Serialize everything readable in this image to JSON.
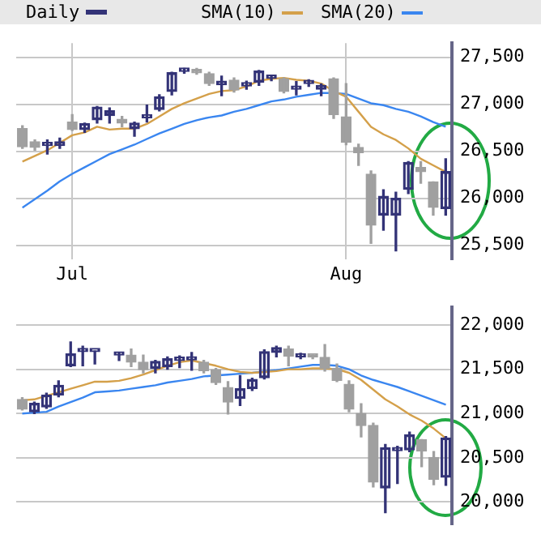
{
  "chart_data": [
    {
      "type": "candlestick",
      "legend": "top",
      "grid": true,
      "marker": "none",
      "categories": [
        null,
        null,
        null,
        null,
        "Jul",
        null,
        null,
        null,
        null,
        null,
        null,
        null,
        null,
        null,
        null,
        null,
        null,
        null,
        null,
        null,
        null,
        null,
        null,
        null,
        null,
        null,
        "Aug",
        null,
        null,
        null,
        null,
        null,
        null,
        null,
        null
      ],
      "ylim": [
        25350,
        27650
      ],
      "yticks": [
        {
          "value": 25500,
          "label": "25,500"
        },
        {
          "value": 26000,
          "label": "26,000"
        },
        {
          "value": 26500,
          "label": "26,500"
        },
        {
          "value": 27000,
          "label": "27,000"
        },
        {
          "value": 27500,
          "label": "27,500"
        }
      ],
      "series": [
        {
          "name": "Daily",
          "color": "#333377",
          "colors": [
            "#a0a0a0",
            "#a0a0a0",
            "#333377",
            "#333377",
            "#a0a0a0",
            "#333377",
            "#333377",
            "#333377",
            "#a0a0a0",
            "#333377",
            "#333377",
            "#333377",
            "#333377",
            "#333377",
            "#a0a0a0",
            "#a0a0a0",
            "#333377",
            "#a0a0a0",
            "#333377",
            "#333377",
            "#333377",
            "#a0a0a0",
            "#333377",
            "#333377",
            "#333377",
            "#a0a0a0",
            "#a0a0a0",
            "#a0a0a0",
            "#a0a0a0",
            "#333377",
            "#333377",
            "#333377",
            "#a0a0a0",
            "#a0a0a0",
            "#333377"
          ],
          "ohlc": [
            [
              26740,
              26770,
              26530,
              26548
            ],
            [
              26600,
              26620,
              26510,
              26540
            ],
            [
              26560,
              26620,
              26470,
              26565
            ],
            [
              26560,
              26640,
              26530,
              26600
            ],
            [
              26810,
              26890,
              26720,
              26730
            ],
            [
              26730,
              26800,
              26700,
              26795
            ],
            [
              26835,
              26975,
              26800,
              26970
            ],
            [
              26880,
              26960,
              26800,
              26930
            ],
            [
              26840,
              26870,
              26760,
              26800
            ],
            [
              26740,
              26810,
              26660,
              26800
            ],
            [
              26855,
              26990,
              26810,
              26860
            ],
            [
              26945,
              27100,
              26930,
              27080
            ],
            [
              27135,
              27340,
              27100,
              27335
            ],
            [
              27350,
              27380,
              27330,
              27365
            ],
            [
              27365,
              27380,
              27320,
              27335
            ],
            [
              27325,
              27340,
              27200,
              27220
            ],
            [
              27207,
              27300,
              27090,
              27245
            ],
            [
              27255,
              27280,
              27130,
              27150
            ],
            [
              27195,
              27245,
              27160,
              27200
            ],
            [
              27235,
              27360,
              27200,
              27353
            ],
            [
              27275,
              27300,
              27250,
              27280
            ],
            [
              27270,
              27280,
              27120,
              27135
            ],
            [
              27160,
              27240,
              27100,
              27190
            ],
            [
              27220,
              27260,
              27190,
              27225
            ],
            [
              27160,
              27215,
              27090,
              27200
            ],
            [
              27270,
              27280,
              26850,
              26890
            ],
            [
              26865,
              27220,
              26570,
              26595
            ],
            [
              26540,
              26575,
              26350,
              26485
            ],
            [
              26255,
              26290,
              25520,
              25713
            ],
            [
              25820,
              26090,
              25660,
              26020
            ],
            [
              25820,
              26065,
              25440,
              26000
            ],
            [
              26095,
              26390,
              26050,
              26380
            ],
            [
              26326,
              26390,
              26160,
              26283
            ],
            [
              26175,
              26175,
              25820,
              25903
            ],
            [
              25890,
              26420,
              25820,
              26283
            ]
          ]
        },
        {
          "name": "SMA(10)",
          "type": "line",
          "color": "#d4a04a",
          "values": [
            26390,
            26450,
            26510,
            26590,
            26670,
            26700,
            26760,
            26730,
            26740,
            26740,
            26790,
            26870,
            26950,
            27010,
            27060,
            27110,
            27140,
            27150,
            27190,
            27250,
            27270,
            27280,
            27260,
            27250,
            27220,
            27140,
            27080,
            26920,
            26760,
            26680,
            26620,
            26530,
            26420,
            26350,
            26280
          ]
        },
        {
          "name": "SMA(20)",
          "type": "line",
          "color": "#3a86f0",
          "values": [
            25900,
            25990,
            26080,
            26180,
            26260,
            26330,
            26400,
            26470,
            26520,
            26570,
            26630,
            26690,
            26740,
            26790,
            26830,
            26860,
            26880,
            26920,
            26950,
            26990,
            27030,
            27050,
            27080,
            27100,
            27120,
            27120,
            27110,
            27060,
            27010,
            26990,
            26950,
            26920,
            26870,
            26810,
            26760
          ]
        }
      ]
    },
    {
      "type": "candlestick",
      "grid": "y",
      "marker": "none",
      "tick_labels": "y",
      "categories": [
        null,
        null,
        null,
        null,
        null,
        null,
        null,
        null,
        null,
        null,
        null,
        null,
        null,
        null,
        null,
        null,
        null,
        null,
        null,
        null,
        null,
        null,
        null,
        null,
        null,
        null,
        null,
        null,
        null,
        null,
        null,
        null,
        null,
        null,
        null,
        null
      ],
      "ylim": [
        19750,
        22200
      ],
      "yticks": [
        {
          "value": 20000,
          "label": "20,000"
        },
        {
          "value": 20500,
          "label": "20,500"
        },
        {
          "value": 21000,
          "label": "21,000"
        },
        {
          "value": 21500,
          "label": "21,500"
        },
        {
          "value": 22000,
          "label": "22,000"
        }
      ],
      "series": [
        {
          "color": "#333377",
          "colors": [
            "#a0a0a0",
            "#333377",
            "#333377",
            "#333377",
            "#333377",
            "#333377",
            "#333377",
            null,
            "#333377",
            "#a0a0a0",
            "#a0a0a0",
            "#333377",
            "#333377",
            "#333377",
            "#333377",
            "#a0a0a0",
            "#a0a0a0",
            "#a0a0a0",
            "#333377",
            "#333377",
            "#333377",
            "#333377",
            "#a0a0a0",
            "#333377",
            "#a0a0a0",
            "#a0a0a0",
            "#a0a0a0",
            "#a0a0a0",
            "#a0a0a0",
            "#a0a0a0",
            "#333377",
            "#333377",
            "#333377",
            "#a0a0a0",
            "#a0a0a0",
            "#333377"
          ],
          "ohlc": [
            [
              21160,
              21180,
              21040,
              21050
            ],
            [
              21020,
              21130,
              21000,
              21115
            ],
            [
              21075,
              21230,
              21060,
              21210
            ],
            [
              21210,
              21370,
              21190,
              21320
            ],
            [
              21540,
              21810,
              21530,
              21675
            ],
            [
              21700,
              21760,
              21540,
              21700
            ],
            [
              21700,
              21705,
              21560,
              21700
            ],
            null,
            [
              21660,
              21690,
              21600,
              21660
            ],
            [
              21660,
              21730,
              21530,
              21580
            ],
            [
              21580,
              21660,
              21460,
              21495
            ],
            [
              21510,
              21600,
              21460,
              21590
            ],
            [
              21530,
              21640,
              21500,
              21620
            ],
            [
              21600,
              21650,
              21520,
              21600
            ],
            [
              21605,
              21690,
              21490,
              21605
            ],
            [
              21580,
              21600,
              21460,
              21485
            ],
            [
              21495,
              21510,
              21330,
              21350
            ],
            [
              21295,
              21360,
              20995,
              21130
            ],
            [
              21170,
              21430,
              21090,
              21280
            ],
            [
              21280,
              21400,
              21260,
              21385
            ],
            [
              21405,
              21720,
              21390,
              21700
            ],
            [
              21690,
              21760,
              21640,
              21745
            ],
            [
              21730,
              21760,
              21540,
              21650
            ],
            [
              21640,
              21680,
              21620,
              21660
            ],
            [
              21650,
              21660,
              21620,
              21640
            ],
            [
              21635,
              21780,
              21480,
              21510
            ],
            [
              21510,
              21560,
              21360,
              21375
            ],
            [
              21330,
              21370,
              21020,
              21050
            ],
            [
              21000,
              21110,
              20735,
              20865
            ],
            [
              20865,
              20890,
              20170,
              20225
            ],
            [
              20160,
              20650,
              19880,
              20615
            ],
            [
              20580,
              20630,
              20210,
              20600
            ],
            [
              20590,
              20790,
              20570,
              20760
            ],
            [
              20705,
              20705,
              20400,
              20575
            ],
            [
              20505,
              20570,
              20195,
              20255
            ],
            [
              20280,
              20740,
              20190,
              20725
            ]
          ]
        },
        {
          "type": "line",
          "color": "#d4a04a",
          "values": [
            21150,
            21160,
            21200,
            21240,
            21280,
            21320,
            21360,
            21360,
            21370,
            21400,
            21440,
            21490,
            21540,
            21580,
            21600,
            21570,
            21540,
            21500,
            21470,
            21460,
            21470,
            21480,
            21500,
            21500,
            21510,
            21510,
            21500,
            21460,
            21380,
            21270,
            21160,
            21080,
            20990,
            20920,
            20830,
            20720
          ]
        },
        {
          "type": "line",
          "color": "#3a86f0",
          "values": [
            21000,
            21010,
            21020,
            21080,
            21130,
            21180,
            21240,
            21250,
            21260,
            21280,
            21300,
            21320,
            21350,
            21370,
            21390,
            21420,
            21430,
            21440,
            21450,
            21460,
            null,
            21490,
            21510,
            21530,
            21550,
            21550,
            21540,
            21500,
            21430,
            21380,
            21340,
            21300,
            21250,
            21200,
            21150,
            21100
          ]
        }
      ]
    }
  ]
}
